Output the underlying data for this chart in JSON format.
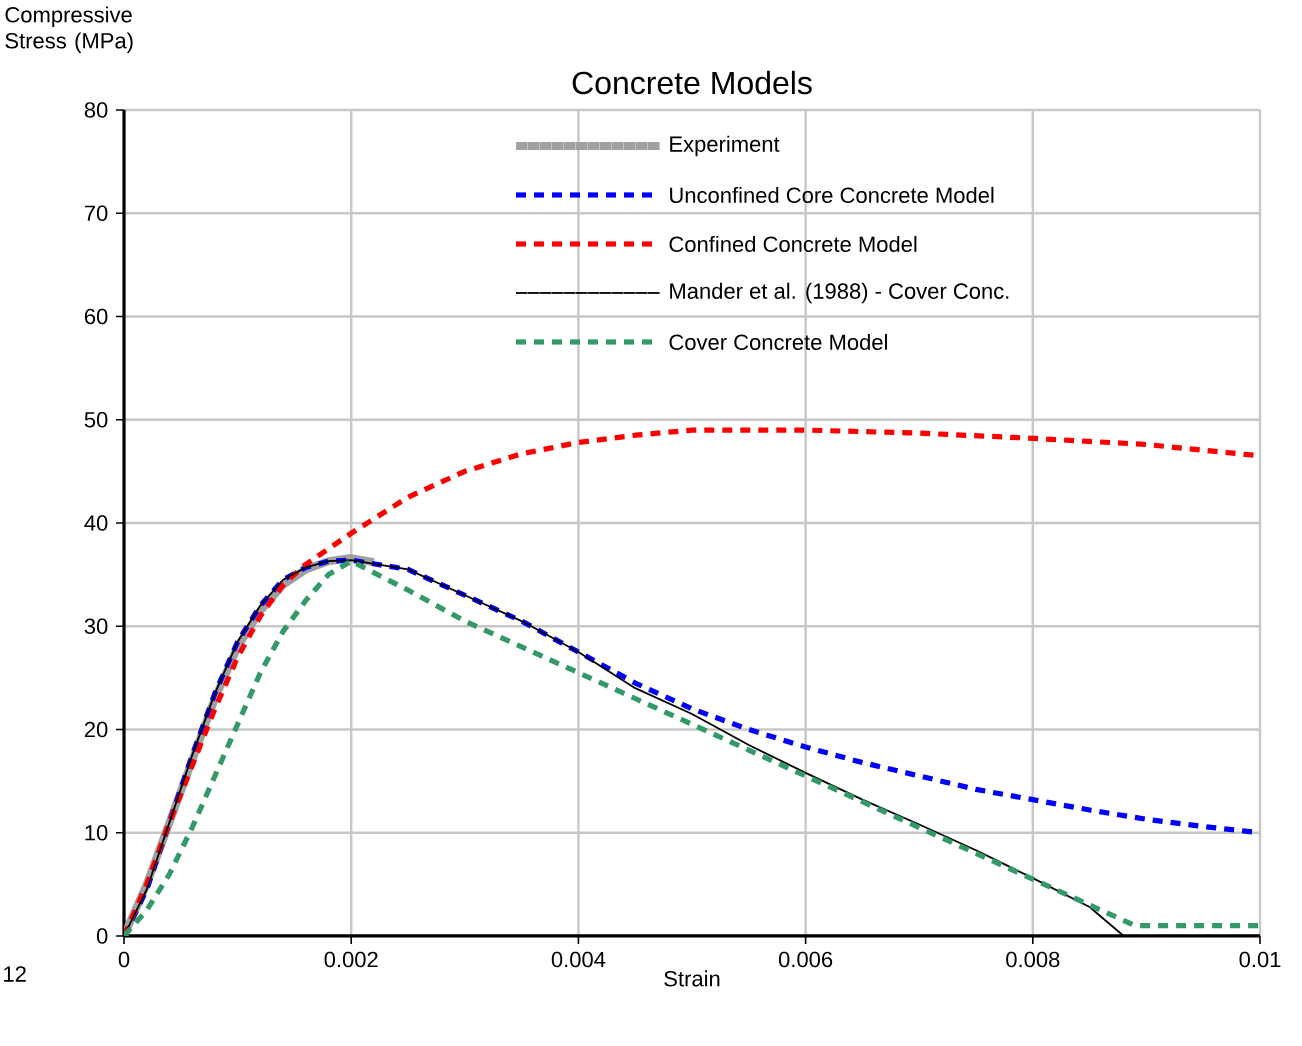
{
  "chart_data": {
    "type": "line",
    "title": "Concrete Models",
    "xlabel": "Strain",
    "ylabel": "Compressive Stress (MPa)",
    "xlim": [
      0,
      0.01
    ],
    "ylim": [
      0,
      80
    ],
    "xticks": [
      0,
      0.002,
      0.004,
      0.006,
      0.008,
      0.01
    ],
    "yticks": [
      0,
      10,
      20,
      30,
      40,
      50,
      60,
      70,
      80
    ],
    "grid": true,
    "legend": "top right",
    "marker": "none",
    "annotations": [
      "12"
    ],
    "series": [
      {
        "name": "Experiment",
        "color": "#a0a0a0",
        "line_style": "solid",
        "x": [
          0,
          0.0002,
          0.0004,
          0.0006,
          0.0008,
          0.001,
          0.0012,
          0.0014,
          0.0016,
          0.0018,
          0.002,
          0.0022
        ],
        "values": [
          0,
          5,
          11,
          17,
          23,
          28,
          31.5,
          34,
          35.5,
          36.3,
          36.6,
          36.2
        ]
      },
      {
        "name": "Unconfined Core Concrete Model",
        "color": "#0000ff",
        "line_style": "dashed",
        "x": [
          0,
          0.0002,
          0.0004,
          0.0006,
          0.0008,
          0.001,
          0.0012,
          0.0014,
          0.0016,
          0.0018,
          0.002,
          0.0025,
          0.003,
          0.0035,
          0.004,
          0.0045,
          0.005,
          0.0055,
          0.006,
          0.0065,
          0.007,
          0.0075,
          0.008,
          0.0085,
          0.009,
          0.0095,
          0.01
        ],
        "values": [
          0,
          4.5,
          11,
          17.5,
          23.5,
          28.5,
          32,
          34.5,
          35.7,
          36.3,
          36.4,
          35.5,
          33,
          30.5,
          27.5,
          24.5,
          22,
          20,
          18.3,
          16.8,
          15.5,
          14.2,
          13.2,
          12.2,
          11.3,
          10.6,
          10
        ]
      },
      {
        "name": "Confined Concrete Model",
        "color": "#ff0000",
        "line_style": "dashed",
        "x": [
          0,
          0.0002,
          0.0004,
          0.0006,
          0.0008,
          0.001,
          0.0012,
          0.0014,
          0.0016,
          0.0018,
          0.002,
          0.0025,
          0.003,
          0.0035,
          0.004,
          0.0045,
          0.005,
          0.006,
          0.007,
          0.008,
          0.009,
          0.01
        ],
        "values": [
          0,
          5,
          11,
          16.5,
          22,
          27,
          31,
          34,
          36,
          37.5,
          39,
          42.5,
          45,
          46.7,
          47.8,
          48.5,
          49,
          49,
          48.7,
          48.2,
          47.6,
          46.5
        ]
      },
      {
        "name": "Mander et al. (1988) - Cover Conc.",
        "color": "#000000",
        "line_style": "solid",
        "x": [
          0,
          0.0002,
          0.0004,
          0.0006,
          0.0008,
          0.001,
          0.0012,
          0.0014,
          0.0016,
          0.0018,
          0.002,
          0.0025,
          0.003,
          0.0035,
          0.004,
          0.0045,
          0.005,
          0.0055,
          0.006,
          0.0065,
          0.007,
          0.0075,
          0.008,
          0.0085,
          0.0088
        ],
        "values": [
          0,
          4.5,
          11,
          17.5,
          23.5,
          28.5,
          32,
          34.5,
          35.7,
          36.3,
          36.4,
          35.5,
          33,
          30.5,
          27.5,
          24,
          21.5,
          18.5,
          15.8,
          13.2,
          10.8,
          8.3,
          5.6,
          2.8,
          0
        ]
      },
      {
        "name": "Cover Concrete Model",
        "color": "#339966",
        "line_style": "dashed",
        "x": [
          0,
          0.0002,
          0.0004,
          0.0006,
          0.0008,
          0.001,
          0.0012,
          0.0014,
          0.0016,
          0.0018,
          0.002,
          0.0025,
          0.003,
          0.0035,
          0.004,
          0.0045,
          0.005,
          0.0055,
          0.006,
          0.0065,
          0.007,
          0.0075,
          0.008,
          0.0085,
          0.0089,
          0.01
        ],
        "values": [
          0,
          2.5,
          6,
          10.5,
          15.5,
          20.5,
          25.5,
          29.5,
          32.5,
          35,
          36.3,
          33.5,
          30.5,
          28,
          25.5,
          23,
          20.5,
          18,
          15.5,
          13,
          10.5,
          8,
          5.5,
          3,
          1,
          1
        ]
      }
    ]
  }
}
